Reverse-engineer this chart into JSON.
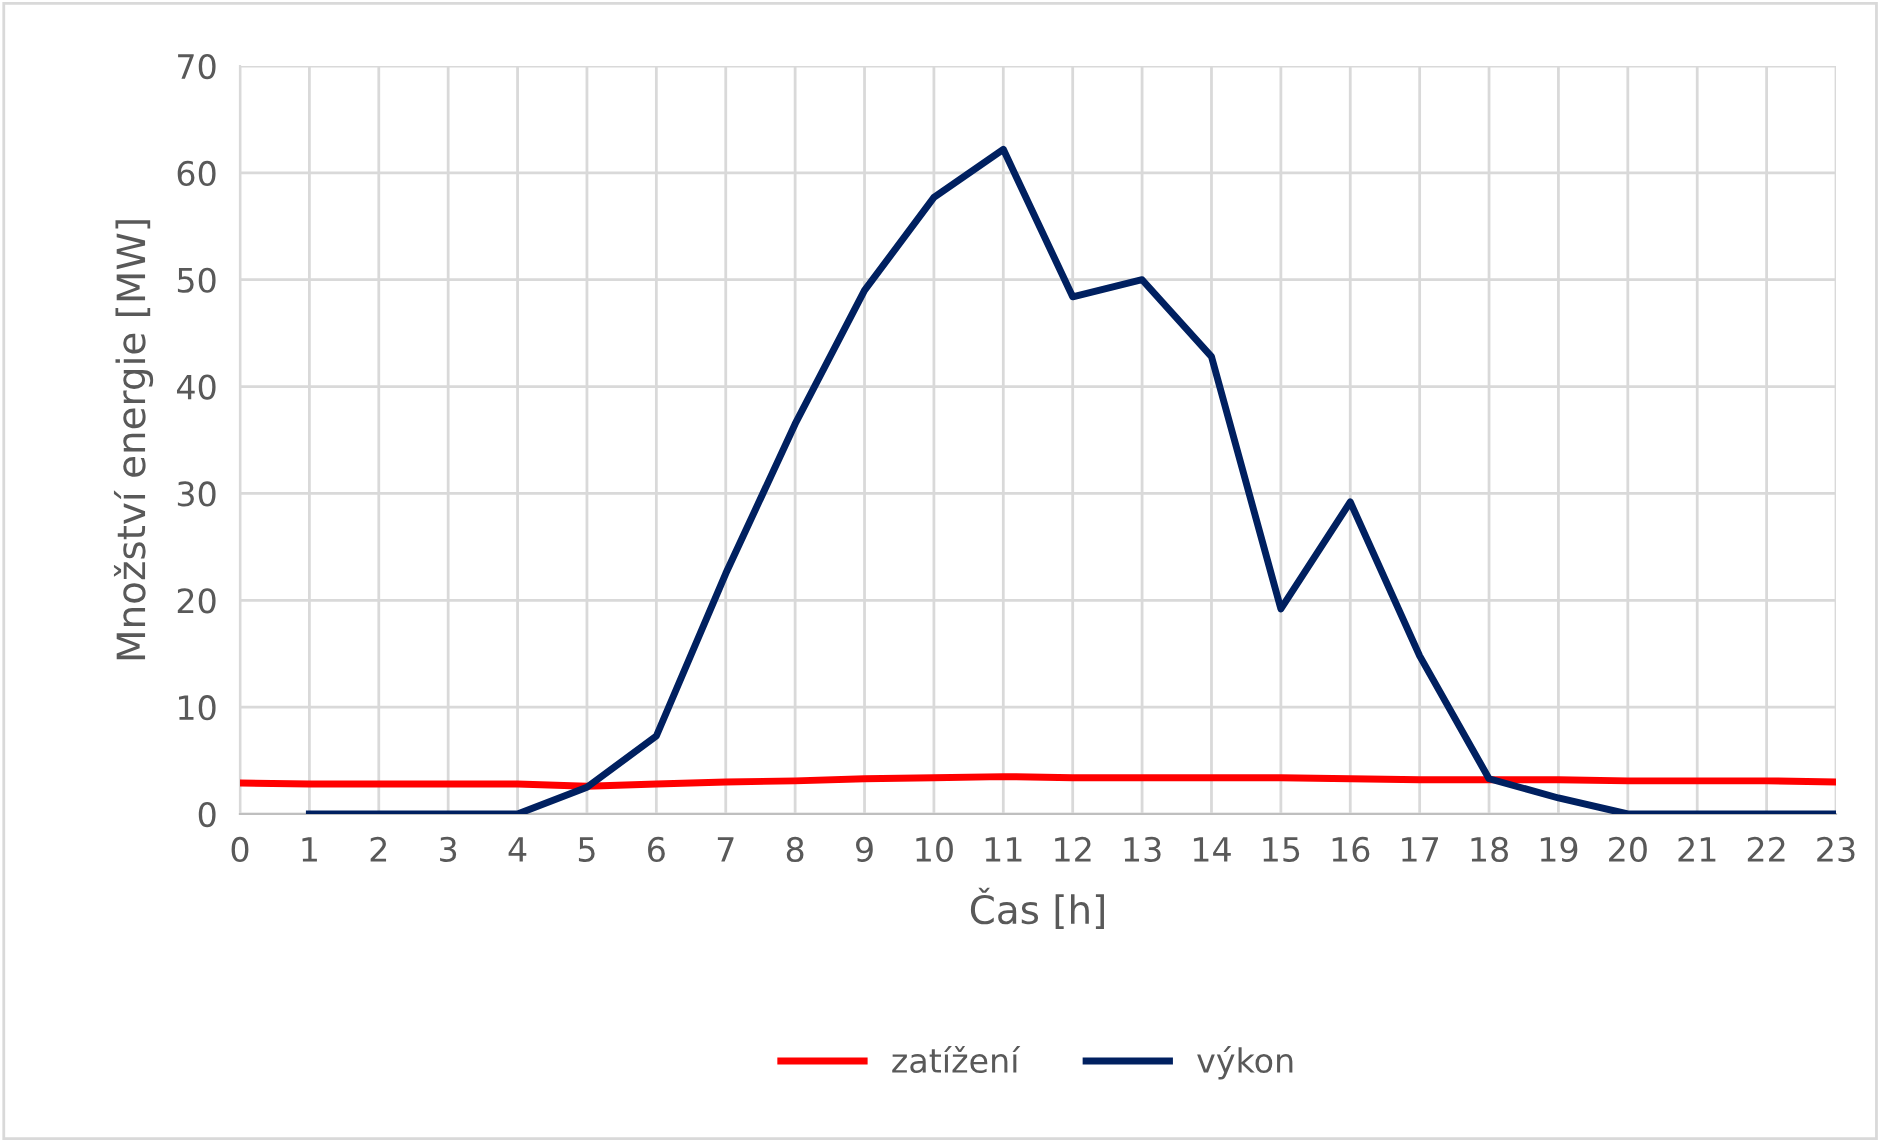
{
  "chart_data": {
    "type": "line",
    "xlabel": "Čas [h]",
    "ylabel": "Množství energie [MW]",
    "xlim": [
      0,
      23
    ],
    "xticks": [
      0,
      1,
      2,
      3,
      4,
      5,
      6,
      7,
      8,
      9,
      10,
      11,
      12,
      13,
      14,
      15,
      16,
      17,
      18,
      19,
      20,
      21,
      22,
      23
    ],
    "ylim": [
      0,
      70
    ],
    "yticks": [
      0,
      10,
      20,
      30,
      40,
      50,
      60,
      70
    ],
    "grid": true,
    "legend": "bottom",
    "marker": "none",
    "line_style": "solid",
    "series": [
      {
        "name": "zatížení",
        "color": "#ff0000",
        "x": [
          0,
          1,
          2,
          3,
          4,
          5,
          6,
          7,
          8,
          9,
          10,
          11,
          12,
          13,
          14,
          15,
          16,
          17,
          18,
          19,
          20,
          21,
          22,
          23
        ],
        "values": [
          2.9,
          2.8,
          2.8,
          2.8,
          2.8,
          2.6,
          2.8,
          3.0,
          3.1,
          3.3,
          3.4,
          3.5,
          3.4,
          3.4,
          3.4,
          3.4,
          3.3,
          3.2,
          3.2,
          3.2,
          3.1,
          3.1,
          3.1,
          3.0
        ]
      },
      {
        "name": "výkon",
        "color": "#002060",
        "x": [
          1,
          2,
          3,
          4,
          5,
          6,
          7,
          8,
          9,
          10,
          11,
          12,
          13,
          14,
          15,
          16,
          17,
          18,
          19,
          20,
          21,
          22,
          23
        ],
        "values": [
          0,
          0,
          0,
          0,
          2.5,
          7.3,
          22.5,
          36.5,
          49,
          57.7,
          62.2,
          48.4,
          50,
          42.8,
          19.2,
          29.2,
          14.8,
          3.3,
          1.5,
          0,
          0,
          0,
          0
        ]
      }
    ]
  }
}
